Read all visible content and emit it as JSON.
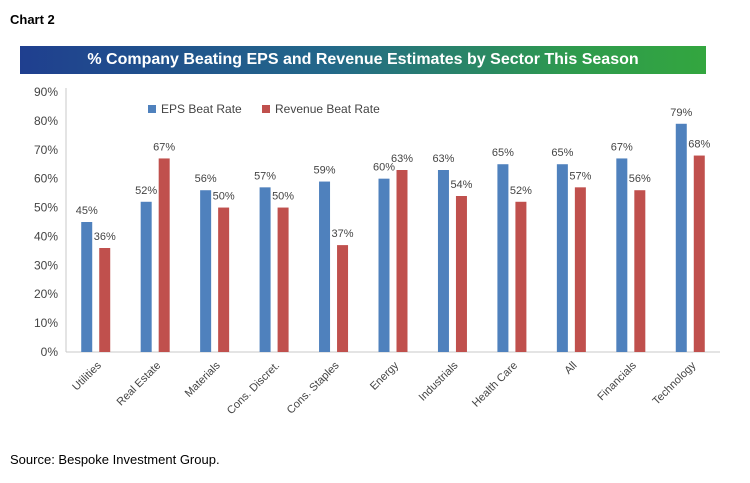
{
  "header": {
    "chart_label": "Chart 2"
  },
  "footer": {
    "source": "Source: Bespoke Investment Group."
  },
  "colors": {
    "eps": "#4f81bd",
    "revenue": "#c0504d",
    "axis": "#c9c9c9"
  },
  "chart_data": {
    "type": "bar",
    "title": "% Company Beating EPS and Revenue Estimates by Sector This Season",
    "categories": [
      "Utilities",
      "Real Estate",
      "Materials",
      "Cons. Discret.",
      "Cons. Staples",
      "Energy",
      "Industrials",
      "Health Care",
      "All",
      "Financials",
      "Technology"
    ],
    "series": [
      {
        "name": "EPS Beat Rate",
        "values": [
          45,
          52,
          56,
          57,
          59,
          60,
          63,
          65,
          65,
          67,
          79
        ]
      },
      {
        "name": "Revenue Beat Rate",
        "values": [
          36,
          67,
          50,
          50,
          37,
          63,
          54,
          52,
          57,
          56,
          68
        ]
      }
    ],
    "ylim": [
      0,
      90
    ],
    "yticks": [
      0,
      10,
      20,
      30,
      40,
      50,
      60,
      70,
      80,
      90
    ],
    "value_suffix": "%",
    "legend": "top-left",
    "grid": false
  }
}
